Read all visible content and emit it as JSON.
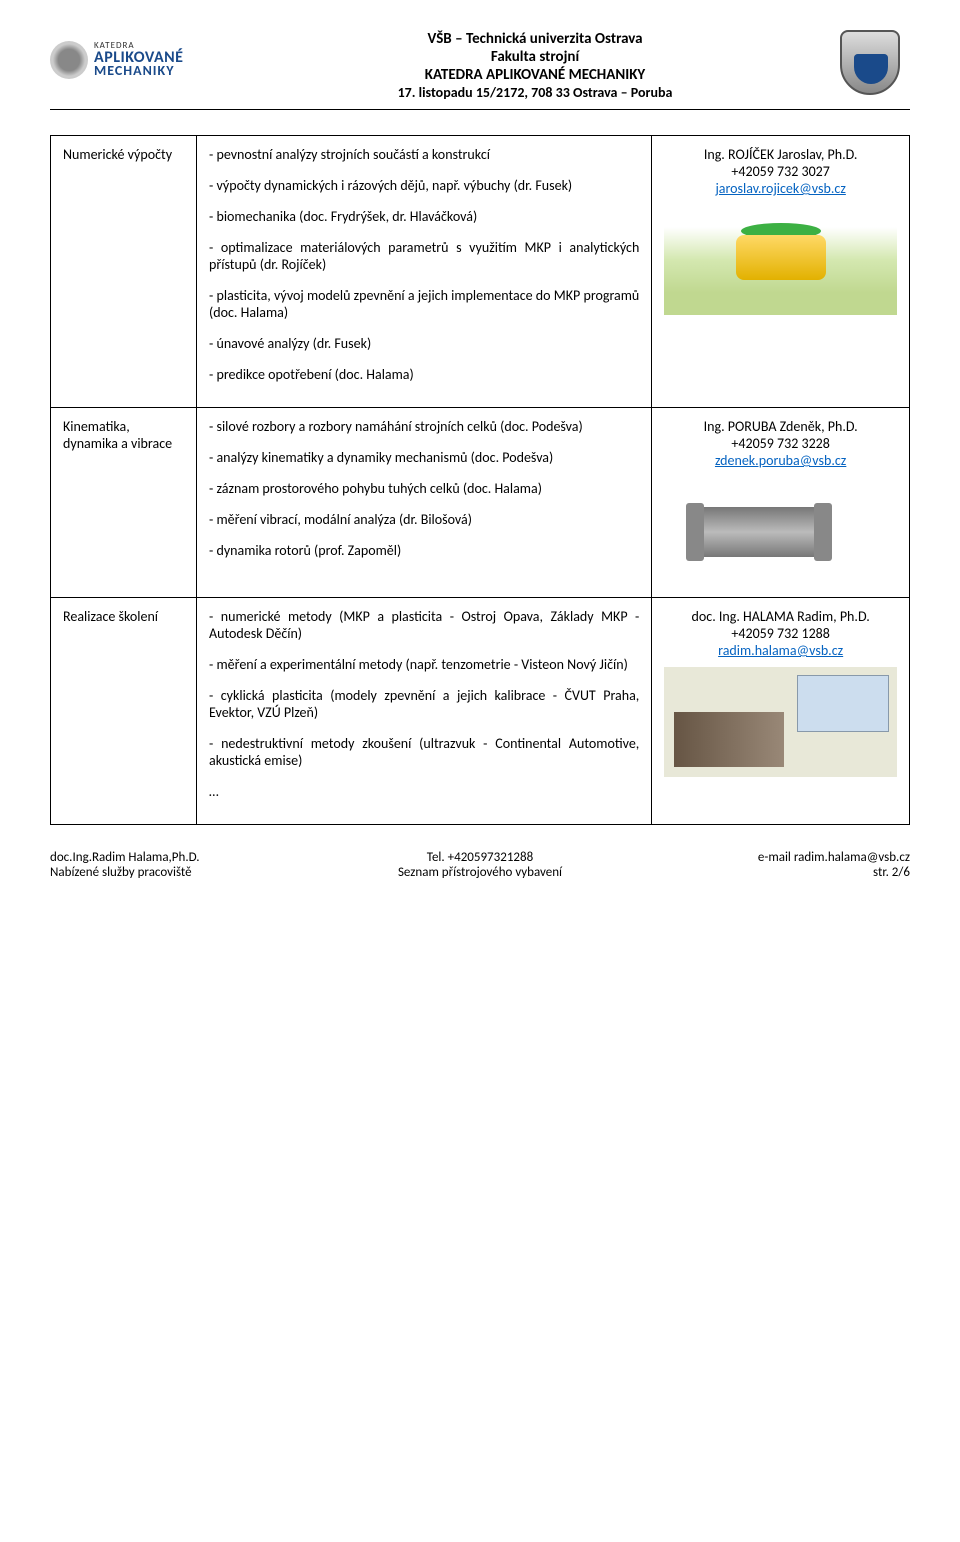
{
  "header": {
    "logo": {
      "line1": "KATEDRA",
      "line2": "APLIKOVANÉ",
      "line3": "MECHANIKY"
    },
    "line1": "VŠB – Technická univerzita Ostrava",
    "line2": "Fakulta strojní",
    "line3": "KATEDRA APLIKOVANÉ MECHANIKY",
    "line4": "17. listopadu 15/2172, 708 33 Ostrava – Poruba"
  },
  "rows": [
    {
      "label": "Numerické výpočty",
      "items": [
        "- pevnostní analýzy strojních součástí a konstrukcí",
        "- výpočty dynamických i rázových dějů, např. výbuchy (dr. Fusek)",
        "- biomechanika (doc. Frydrýšek, dr. Hlaváčková)",
        "- optimalizace materiálových parametrů s využitím MKP i analytických přístupů (dr. Rojíček)",
        "- plasticita, vývoj modelů zpevnění a jejich implementace do MKP programů (doc. Halama)",
        "- únavové analýzy (dr. Fusek)",
        "- predikce opotřebení (doc. Halama)"
      ],
      "contact": {
        "name": "Ing. ROJÍČEK Jaroslav, Ph.D.",
        "phone": "+42059 732 3027",
        "email": "jaroslav.rojicek@vsb.cz"
      }
    },
    {
      "label": "Kinematika, dynamika a vibrace",
      "items": [
        "- silové rozbory a rozbory namáhání strojních celků (doc. Podešva)",
        "- analýzy kinematiky a dynamiky mechanismů (doc. Podešva)",
        "- záznam prostorového pohybu tuhých celků (doc. Halama)",
        "- měření vibrací, modální analýza (dr. Bilošová)",
        "- dynamika rotorů (prof. Zapoměl)"
      ],
      "contact": {
        "name": "Ing. PORUBA Zdeněk, Ph.D.",
        "phone": "+42059 732 3228",
        "email": "zdenek.poruba@vsb.cz"
      }
    },
    {
      "label": "Realizace školení",
      "items": [
        "- numerické metody (MKP a plasticita - Ostroj Opava, Základy MKP - Autodesk Děčín)",
        "- měření a experimentální metody (např. tenzometrie - Visteon Nový Jičín)",
        "- cyklická plasticita (modely zpevnění a jejich kalibrace - ČVUT Praha, Evektor, VZÚ Plzeň)",
        "- nedestruktivní metody zkoušení (ultrazvuk - Continental Automotive, akustická emise)",
        "…"
      ],
      "contact": {
        "name": "doc. Ing. HALAMA Radim, Ph.D.",
        "phone": "+42059 732 1288",
        "email": "radim.halama@vsb.cz"
      }
    }
  ],
  "footer": {
    "left1": "doc.Ing.Radim Halama,Ph.D.",
    "left2": "Nabízené služby pracoviště",
    "center1": "Tel. +420597321288",
    "center2": "Seznam přístrojového vybavení",
    "right1": "e-mail radim.halama@vsb.cz",
    "right2": "str. 2/6"
  }
}
